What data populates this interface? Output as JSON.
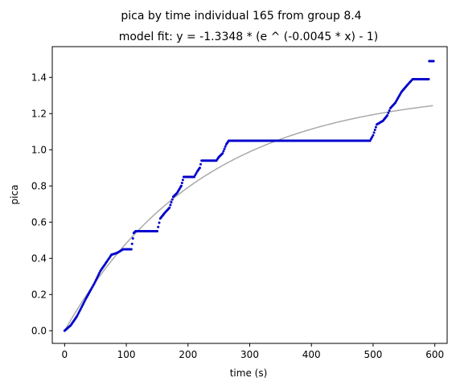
{
  "chart_data": {
    "type": "scatter",
    "title": "pica by time individual 165 from group 8.4",
    "subtitle": "model fit: y = -1.3348 * (e ^ (-0.0045 * x) - 1)",
    "xlabel": "time (s)",
    "ylabel": "pica",
    "xlim": [
      -20,
      620
    ],
    "ylim": [
      -0.07,
      1.57
    ],
    "xticks": [
      0,
      100,
      200,
      300,
      400,
      500,
      600
    ],
    "yticks": [
      0.0,
      0.2,
      0.4,
      0.6,
      0.8,
      1.0,
      1.2,
      1.4
    ],
    "ytick_labels": [
      "0.0",
      "0.2",
      "0.4",
      "0.6",
      "0.8",
      "1.0",
      "1.2",
      "1.4"
    ],
    "grid": false,
    "colors": {
      "points": "#0000cc",
      "fit": "#aaaaaa"
    },
    "fit": {
      "A": 1.3348,
      "k": 0.0045,
      "x_range": [
        0,
        598
      ]
    },
    "series": [
      {
        "kind": "points",
        "segments": [
          [
            [
              0,
              0.0
            ],
            [
              10,
              0.03
            ],
            [
              20,
              0.08
            ],
            [
              35,
              0.18
            ],
            [
              48,
              0.26
            ],
            [
              58,
              0.33
            ],
            [
              68,
              0.38
            ],
            [
              76,
              0.42
            ]
          ],
          [
            [
              76,
              0.42
            ],
            [
              85,
              0.43
            ],
            [
              95,
              0.45
            ],
            [
              108,
              0.45
            ]
          ],
          [
            [
              108,
              0.45
            ],
            [
              112,
              0.54
            ],
            [
              115,
              0.55
            ],
            [
              150,
              0.55
            ]
          ],
          [
            [
              150,
              0.55
            ],
            [
              155,
              0.62
            ],
            [
              162,
              0.65
            ],
            [
              170,
              0.68
            ],
            [
              176,
              0.74
            ],
            [
              182,
              0.76
            ],
            [
              189,
              0.8
            ]
          ],
          [
            [
              189,
              0.8
            ],
            [
              193,
              0.85
            ],
            [
              210,
              0.85
            ]
          ],
          [
            [
              210,
              0.85
            ],
            [
              215,
              0.88
            ],
            [
              219,
              0.9
            ]
          ],
          [
            [
              219,
              0.9
            ],
            [
              222,
              0.94
            ],
            [
              246,
              0.94
            ],
            [
              250,
              0.96
            ]
          ],
          [
            [
              250,
              0.96
            ],
            [
              256,
              0.98
            ],
            [
              262,
              1.03
            ],
            [
              266,
              1.05
            ],
            [
              495,
              1.05
            ]
          ],
          [
            [
              495,
              1.05
            ],
            [
              500,
              1.08
            ],
            [
              506,
              1.14
            ],
            [
              516,
              1.16
            ],
            [
              523,
              1.19
            ],
            [
              528,
              1.23
            ],
            [
              536,
              1.26
            ],
            [
              546,
              1.32
            ],
            [
              556,
              1.36
            ],
            [
              564,
              1.39
            ],
            [
              590,
              1.39
            ]
          ],
          [
            [
              591,
              1.49
            ],
            [
              598,
              1.49
            ]
          ]
        ]
      }
    ]
  }
}
